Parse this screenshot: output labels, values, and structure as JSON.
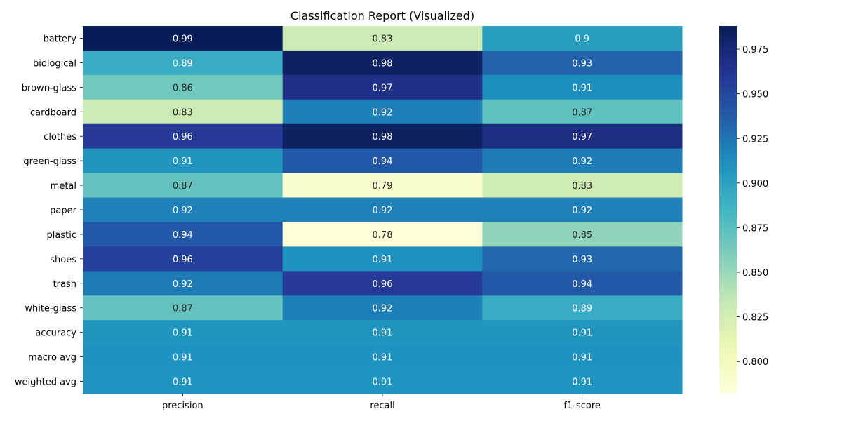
{
  "chart_data": {
    "type": "heatmap",
    "title": "Classification Report (Visualized)",
    "xlabel": "",
    "ylabel": "",
    "columns": [
      "precision",
      "recall",
      "f1-score"
    ],
    "rows": [
      "battery",
      "biological",
      "brown-glass",
      "cardboard",
      "clothes",
      "green-glass",
      "metal",
      "paper",
      "plastic",
      "shoes",
      "trash",
      "white-glass",
      "accuracy",
      "macro avg",
      "weighted avg"
    ],
    "values": [
      [
        0.988,
        0.83,
        0.902
      ],
      [
        0.892,
        0.983,
        0.934
      ],
      [
        0.865,
        0.967,
        0.912
      ],
      [
        0.83,
        0.92,
        0.872
      ],
      [
        0.958,
        0.984,
        0.97
      ],
      [
        0.908,
        0.94,
        0.921
      ],
      [
        0.87,
        0.79,
        0.828
      ],
      [
        0.919,
        0.919,
        0.919
      ],
      [
        0.94,
        0.782,
        0.854
      ],
      [
        0.955,
        0.91,
        0.932
      ],
      [
        0.922,
        0.959,
        0.94
      ],
      [
        0.87,
        0.92,
        0.893
      ],
      [
        0.908,
        0.908,
        0.908
      ],
      [
        0.91,
        0.91,
        0.91
      ],
      [
        0.909,
        0.909,
        0.909
      ]
    ],
    "labels": [
      [
        "0.99",
        "0.83",
        "0.9"
      ],
      [
        "0.89",
        "0.98",
        "0.93"
      ],
      [
        "0.86",
        "0.97",
        "0.91"
      ],
      [
        "0.83",
        "0.92",
        "0.87"
      ],
      [
        "0.96",
        "0.98",
        "0.97"
      ],
      [
        "0.91",
        "0.94",
        "0.92"
      ],
      [
        "0.87",
        "0.79",
        "0.83"
      ],
      [
        "0.92",
        "0.92",
        "0.92"
      ],
      [
        "0.94",
        "0.78",
        "0.85"
      ],
      [
        "0.96",
        "0.91",
        "0.93"
      ],
      [
        "0.92",
        "0.96",
        "0.94"
      ],
      [
        "0.87",
        "0.92",
        "0.89"
      ],
      [
        "0.91",
        "0.91",
        "0.91"
      ],
      [
        "0.91",
        "0.91",
        "0.91"
      ],
      [
        "0.91",
        "0.91",
        "0.91"
      ]
    ],
    "colormap": "YlGnBu",
    "vmin": 0.782,
    "vmax": 0.988,
    "colorbar_ticks": [
      "0.800",
      "0.825",
      "0.850",
      "0.875",
      "0.900",
      "0.925",
      "0.950",
      "0.975"
    ],
    "colorbar_position": "right",
    "grid": false
  }
}
